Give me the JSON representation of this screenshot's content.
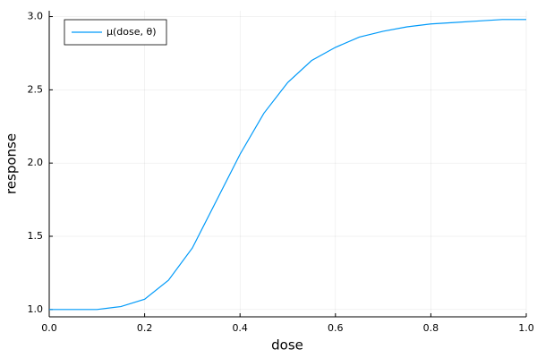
{
  "chart_data": {
    "type": "line",
    "x_label": "dose",
    "y_label": "response",
    "x": [
      0,
      0.05,
      0.1,
      0.15,
      0.2,
      0.25,
      0.3,
      0.35,
      0.4,
      0.45,
      0.5,
      0.55,
      0.6,
      0.65,
      0.7,
      0.75,
      0.8,
      0.85,
      0.9,
      0.95,
      1.0
    ],
    "series": [
      {
        "name": "μ(dose, θ)",
        "color": "#009af9",
        "values": [
          1.0,
          1.0,
          1.0,
          1.02,
          1.07,
          1.2,
          1.42,
          1.74,
          2.06,
          2.34,
          2.55,
          2.7,
          2.79,
          2.86,
          2.9,
          2.93,
          2.95,
          2.96,
          2.97,
          2.98,
          2.98
        ]
      }
    ],
    "xlim": [
      0,
      1
    ],
    "ylim": [
      0.95,
      3.04
    ],
    "xticks": [
      {
        "value": 0,
        "label": "0.0"
      },
      0.2,
      0.4,
      0.6,
      0.8,
      {
        "value": 1,
        "label": "1.0"
      }
    ],
    "yticks": [
      {
        "value": 1,
        "label": "1.0"
      },
      1.5,
      {
        "value": 2,
        "label": "2.0"
      },
      2.5,
      {
        "value": 3,
        "label": "3.0"
      }
    ],
    "grid": true,
    "legend": "top-left"
  }
}
